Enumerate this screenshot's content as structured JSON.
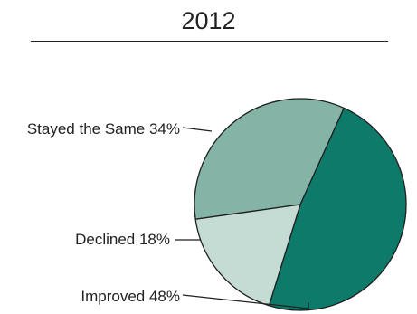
{
  "chart_data": {
    "type": "pie",
    "title": "2012",
    "slices": [
      {
        "label": "Stayed the Same",
        "value": 34,
        "text": "Stayed the Same 34%",
        "color": "#84b4a6"
      },
      {
        "label": "Improved",
        "value": 48,
        "text": "Improved 48%",
        "color": "#0e7a69"
      },
      {
        "label": "Declined",
        "value": 18,
        "text": "Declined 18%",
        "color": "#c5dcd5"
      }
    ]
  }
}
